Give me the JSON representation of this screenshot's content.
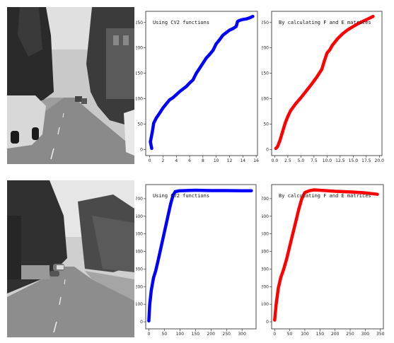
{
  "scenes": [
    {
      "name": "street-scene-top"
    },
    {
      "name": "street-scene-bottom"
    }
  ],
  "chart_data": [
    {
      "type": "line",
      "title": "Using CV2 functions",
      "xlabel": "",
      "ylabel": "",
      "xlim": [
        -0.6,
        16.2
      ],
      "ylim": [
        -12,
        272
      ],
      "xticks": [
        0,
        2,
        4,
        6,
        8,
        10,
        12,
        14,
        16
      ],
      "yticks": [
        0,
        50,
        100,
        150,
        200,
        250
      ],
      "grid": false,
      "series": [
        {
          "color": "#0000ff",
          "x": [
            0.3,
            0.1,
            0.4,
            0.6,
            1,
            1.5,
            2,
            2.5,
            3,
            3.5,
            4,
            4.5,
            5,
            5.5,
            6,
            6.5,
            7,
            7.5,
            8,
            8.5,
            9,
            9.5,
            10,
            10.5,
            11,
            11.5,
            12,
            12.5,
            13,
            13.2,
            13.5,
            14,
            14.5,
            15,
            15.5
          ],
          "y": [
            2,
            15,
            35,
            52,
            62,
            72,
            82,
            90,
            98,
            102,
            108,
            114,
            119,
            124,
            131,
            137,
            150,
            160,
            170,
            180,
            187,
            195,
            208,
            216,
            225,
            230,
            235,
            238,
            242,
            252,
            254,
            256,
            257,
            259,
            262
          ]
        }
      ]
    },
    {
      "type": "line",
      "title": "By calculating F and E matrices",
      "xlabel": "",
      "ylabel": "",
      "xlim": [
        -0.6,
        20.5
      ],
      "ylim": [
        -12,
        272
      ],
      "xticks": [
        0.0,
        2.5,
        5.0,
        7.5,
        10.0,
        12.5,
        15.0,
        17.5,
        20.0
      ],
      "xticklabels": [
        "0.0",
        "2.5",
        "5.0",
        "7.5",
        "10.0",
        "12.5",
        "15.0",
        "17.5",
        "20.0"
      ],
      "yticks": [
        0,
        50,
        100,
        150,
        200,
        250
      ],
      "grid": false,
      "series": [
        {
          "color": "#ff0000",
          "x": [
            0.2,
            0.5,
            1,
            1.5,
            2,
            2.5,
            3,
            4,
            5,
            6,
            7,
            8,
            9,
            9.5,
            10,
            10.5,
            11,
            12,
            13,
            14,
            15,
            16,
            17,
            18,
            18.8
          ],
          "y": [
            2,
            5,
            18,
            35,
            52,
            65,
            76,
            90,
            102,
            115,
            128,
            142,
            158,
            175,
            190,
            196,
            205,
            218,
            228,
            236,
            242,
            248,
            253,
            258,
            262
          ]
        }
      ]
    },
    {
      "type": "line",
      "title": "Using CV2 functions",
      "xlabel": "",
      "ylabel": "",
      "xlim": [
        -10,
        345
      ],
      "ylim": [
        -40,
        780
      ],
      "xticks": [
        0,
        50,
        100,
        150,
        200,
        250,
        300
      ],
      "yticks": [
        0,
        100,
        200,
        300,
        400,
        500,
        600,
        700
      ],
      "grid": false,
      "series": [
        {
          "color": "#0000ff",
          "x": [
            0,
            3,
            8,
            15,
            22,
            30,
            40,
            50,
            60,
            70,
            78,
            85,
            100,
            150,
            200,
            250,
            300,
            330
          ],
          "y": [
            5,
            100,
            180,
            250,
            290,
            350,
            430,
            510,
            590,
            670,
            720,
            740,
            745,
            748,
            746,
            746,
            745,
            745
          ]
        }
      ]
    },
    {
      "type": "line",
      "title": "By calculating F and E matrices",
      "xlabel": "",
      "ylabel": "",
      "xlim": [
        -10,
        360
      ],
      "ylim": [
        -40,
        780
      ],
      "xticks": [
        0,
        50,
        100,
        150,
        200,
        250,
        300,
        350
      ],
      "yticks": [
        0,
        100,
        200,
        300,
        400,
        500,
        600,
        700
      ],
      "grid": false,
      "series": [
        {
          "color": "#ff0000",
          "x": [
            0,
            5,
            12,
            20,
            30,
            40,
            50,
            60,
            70,
            80,
            90,
            100,
            115,
            130,
            150,
            200,
            250,
            300,
            340
          ],
          "y": [
            10,
            100,
            190,
            250,
            300,
            360,
            430,
            500,
            570,
            640,
            700,
            735,
            745,
            750,
            748,
            742,
            738,
            733,
            725
          ]
        }
      ]
    }
  ]
}
